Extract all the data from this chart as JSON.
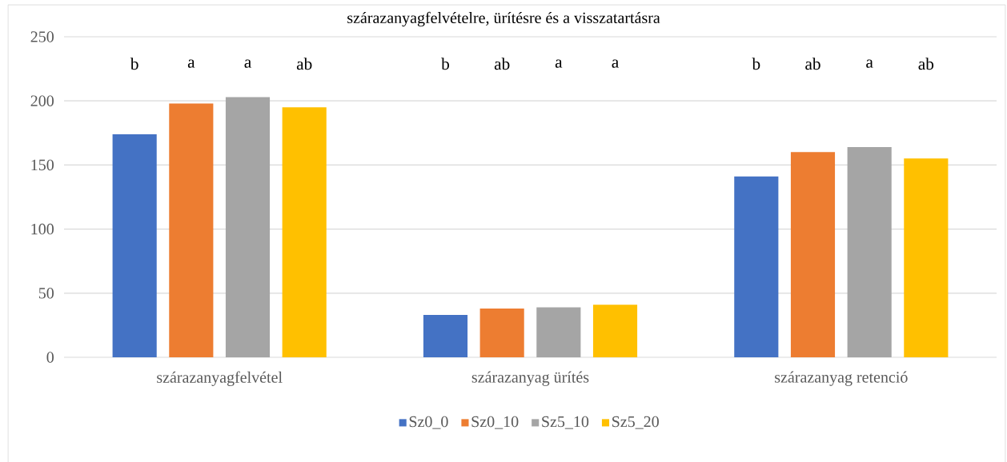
{
  "chart_data": {
    "type": "bar",
    "title": "szárazanyagfelvételre, ürítésre és a visszatartásra",
    "categories": [
      "szárazanyagfelvétel",
      "szárazanyag ürítés",
      "szárazanyag retenció"
    ],
    "series": [
      {
        "name": "Sz0_0",
        "color": "#4472c4",
        "values": [
          174,
          33,
          141
        ]
      },
      {
        "name": "Sz0_10",
        "color": "#ed7d31",
        "values": [
          198,
          38,
          160
        ]
      },
      {
        "name": "Sz5_10",
        "color": "#a5a5a5",
        "values": [
          203,
          39,
          164
        ]
      },
      {
        "name": "Sz5_20",
        "color": "#ffc000",
        "values": [
          195,
          41,
          155
        ]
      }
    ],
    "ylim": [
      0,
      250
    ],
    "yticks": [
      0,
      50,
      100,
      150,
      200,
      250
    ],
    "grid": "y",
    "legend": "bottom",
    "annotations": [
      "b",
      "a",
      "a",
      "ab",
      "b",
      "ab",
      "a",
      "a",
      "b",
      "ab",
      "a",
      "ab"
    ]
  }
}
